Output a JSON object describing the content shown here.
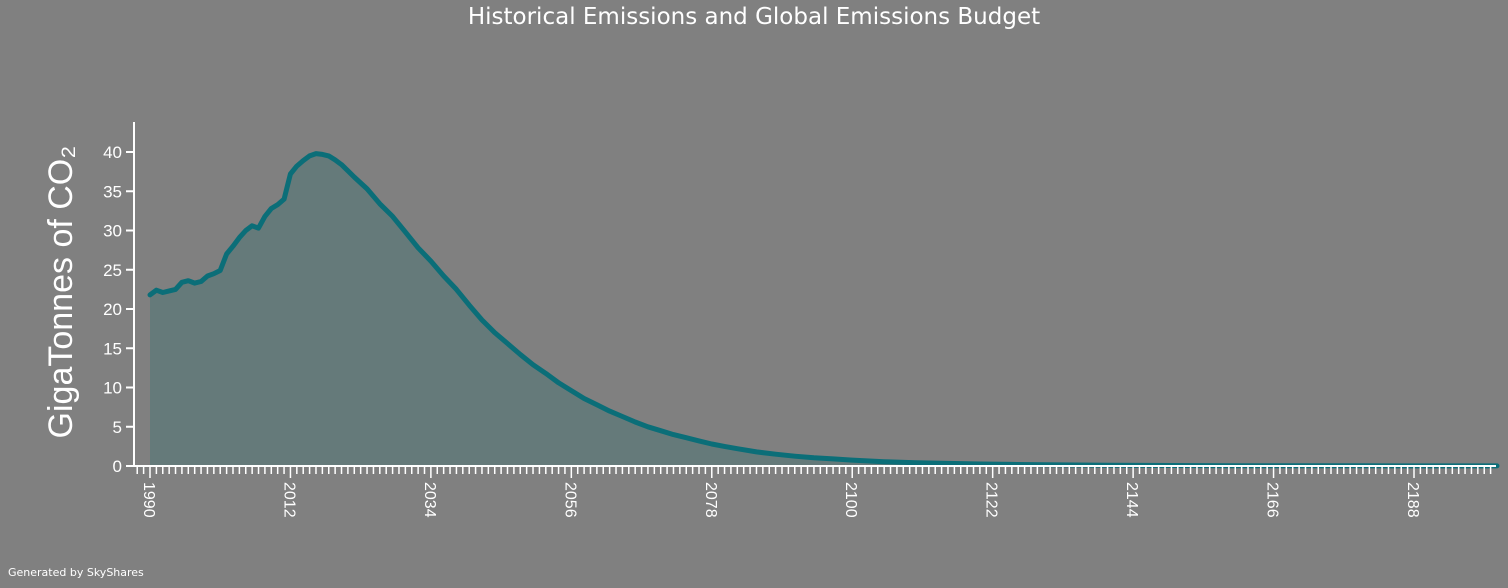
{
  "chart_data": {
    "type": "area",
    "title": "Historical Emissions and Global Emissions Budget",
    "ylabel": "GigaTonnes of CO₂",
    "xlabel": "",
    "xlim": [
      1988,
      2201
    ],
    "ylim": [
      0,
      40
    ],
    "yticks": [
      0,
      5,
      10,
      15,
      20,
      25,
      30,
      35,
      40
    ],
    "xticks_labeled": [
      1990,
      2012,
      2034,
      2056,
      2078,
      2100,
      2122,
      2144,
      2166,
      2188
    ],
    "grid": false,
    "legend": "none",
    "colors": {
      "line": "#0b6e78",
      "fill": "#657a7a"
    },
    "series": [
      {
        "x": [
          1990,
          1991,
          1992,
          1993,
          1994,
          1995,
          1996,
          1997,
          1998,
          1999,
          2000,
          2001,
          2002,
          2003,
          2004,
          2005,
          2006,
          2007,
          2008,
          2009,
          2010,
          2011,
          2012,
          2013,
          2014,
          2015,
          2016,
          2017,
          2018,
          2019,
          2020,
          2021,
          2022,
          2024,
          2026,
          2028,
          2030,
          2032,
          2034,
          2036,
          2038,
          2040,
          2042,
          2044,
          2046,
          2048,
          2050,
          2052,
          2054,
          2056,
          2058,
          2060,
          2062,
          2064,
          2066,
          2068,
          2070,
          2072,
          2074,
          2076,
          2078,
          2080,
          2082,
          2085,
          2088,
          2091,
          2094,
          2097,
          2100,
          2105,
          2110,
          2115,
          2120,
          2125,
          2130,
          2140,
          2150,
          2160,
          2170,
          2180,
          2190,
          2201
        ],
        "y": [
          21.8,
          22.4,
          22.1,
          22.3,
          22.5,
          23.4,
          23.6,
          23.3,
          23.5,
          24.2,
          24.5,
          24.9,
          27.0,
          28.0,
          29.1,
          30.0,
          30.6,
          30.3,
          31.8,
          32.8,
          33.3,
          34.0,
          37.2,
          38.2,
          38.9,
          39.5,
          39.8,
          39.7,
          39.5,
          39.0,
          38.4,
          37.6,
          36.8,
          35.3,
          33.4,
          31.8,
          29.8,
          27.8,
          26.1,
          24.2,
          22.5,
          20.5,
          18.6,
          17.0,
          15.6,
          14.2,
          12.9,
          11.8,
          10.6,
          9.6,
          8.6,
          7.8,
          7.0,
          6.3,
          5.6,
          5.0,
          4.5,
          4.0,
          3.6,
          3.2,
          2.8,
          2.5,
          2.2,
          1.8,
          1.5,
          1.25,
          1.05,
          0.9,
          0.75,
          0.55,
          0.42,
          0.33,
          0.25,
          0.2,
          0.16,
          0.1,
          0.06,
          0.04,
          0.03,
          0.02,
          0.01,
          0.01
        ]
      }
    ]
  },
  "footer": "Generated by SkyShares"
}
